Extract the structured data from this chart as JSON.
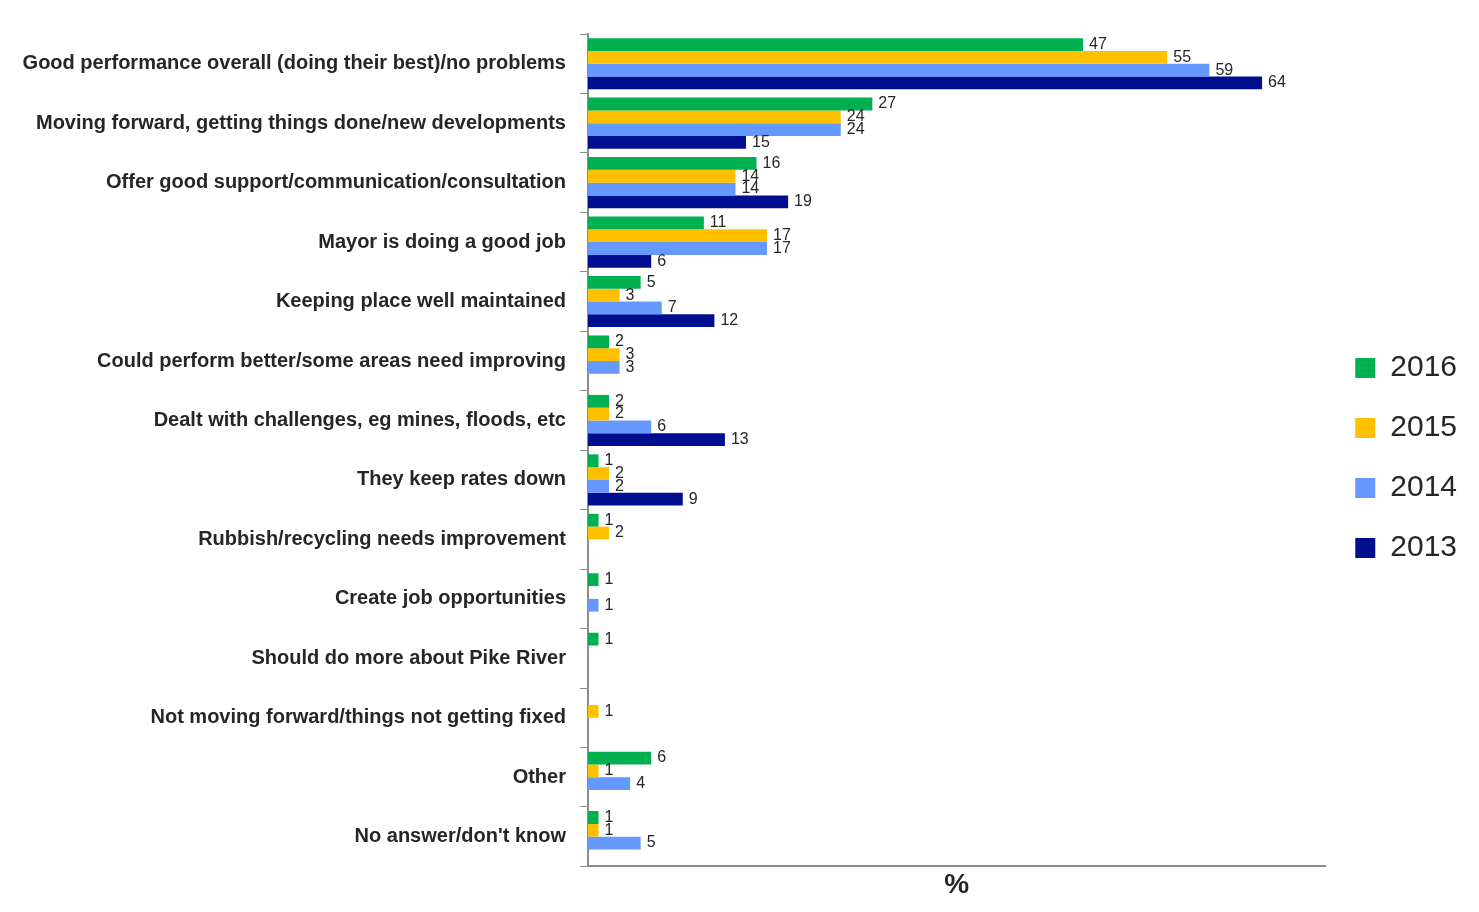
{
  "chart_data": {
    "type": "bar",
    "orientation": "horizontal",
    "xlabel": "%",
    "categories": [
      "Good performance overall (doing their best)/no problems",
      "Moving forward, getting things done/new developments",
      "Offer good support/communication/consultation",
      "Mayor is doing a good job",
      "Keeping place well maintained",
      "Could perform better/some areas need improving",
      "Dealt with challenges, eg mines, floods, etc",
      "They keep rates down",
      "Rubbish/recycling needs improvement",
      "Create job opportunities",
      "Should do more about Pike River",
      "Not moving forward/things not getting fixed",
      "Other",
      "No answer/don't know"
    ],
    "series": [
      {
        "name": "2016",
        "color": "#00b050",
        "values": [
          47,
          27,
          16,
          11,
          5,
          2,
          2,
          1,
          1,
          1,
          1,
          null,
          6,
          1
        ]
      },
      {
        "name": "2015",
        "color": "#ffc000",
        "values": [
          55,
          24,
          14,
          17,
          3,
          3,
          2,
          2,
          2,
          null,
          null,
          1,
          1,
          1
        ]
      },
      {
        "name": "2014",
        "color": "#6699ff",
        "values": [
          59,
          24,
          14,
          17,
          7,
          3,
          6,
          2,
          null,
          1,
          null,
          null,
          4,
          5
        ]
      },
      {
        "name": "2013",
        "color": "#000f8f",
        "values": [
          64,
          15,
          19,
          6,
          12,
          null,
          13,
          9,
          null,
          null,
          null,
          null,
          null,
          null
        ]
      }
    ],
    "data_labels": true,
    "legend": "right",
    "tick_labels": "y"
  }
}
